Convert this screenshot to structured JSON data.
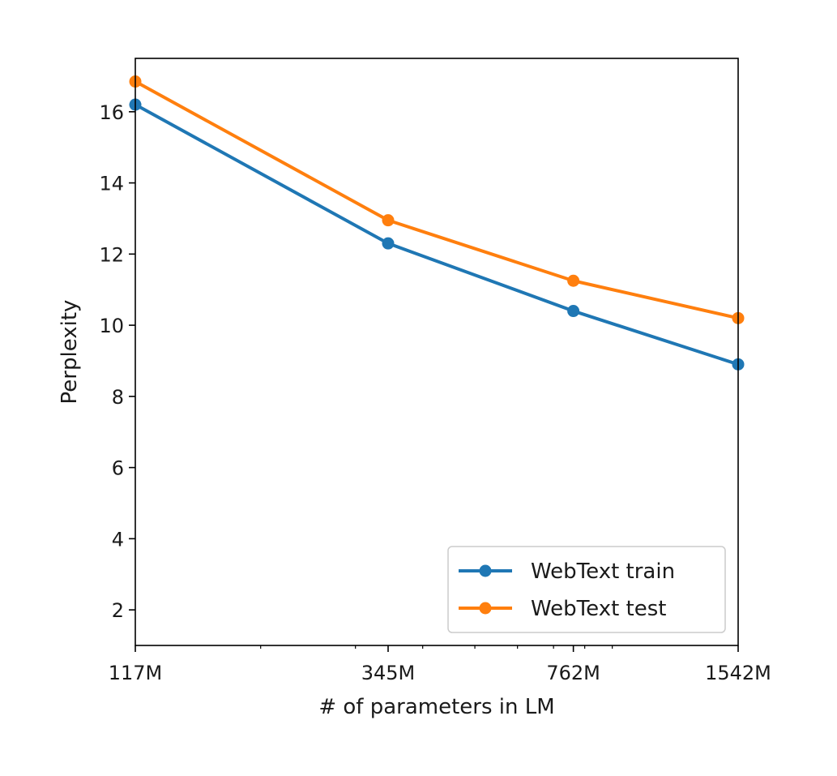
{
  "chart_data": {
    "type": "line",
    "x_scale": "log",
    "categories": [
      "117M",
      "345M",
      "762M",
      "1542M"
    ],
    "x": [
      117,
      345,
      762,
      1542
    ],
    "xlabel": "# of parameters in LM",
    "ylabel": "Perplexity",
    "ylim": [
      1,
      17.5
    ],
    "yticks": [
      "2",
      "4",
      "6",
      "8",
      "10",
      "12",
      "14",
      "16"
    ],
    "grid": false,
    "legend_position": "lower-right",
    "series": [
      {
        "name": "WebText train",
        "color": "#1f77b4",
        "values": [
          16.2,
          12.3,
          10.4,
          8.9
        ]
      },
      {
        "name": "WebText test",
        "color": "#ff7f0e",
        "values": [
          16.85,
          12.95,
          11.25,
          10.2
        ]
      }
    ]
  }
}
